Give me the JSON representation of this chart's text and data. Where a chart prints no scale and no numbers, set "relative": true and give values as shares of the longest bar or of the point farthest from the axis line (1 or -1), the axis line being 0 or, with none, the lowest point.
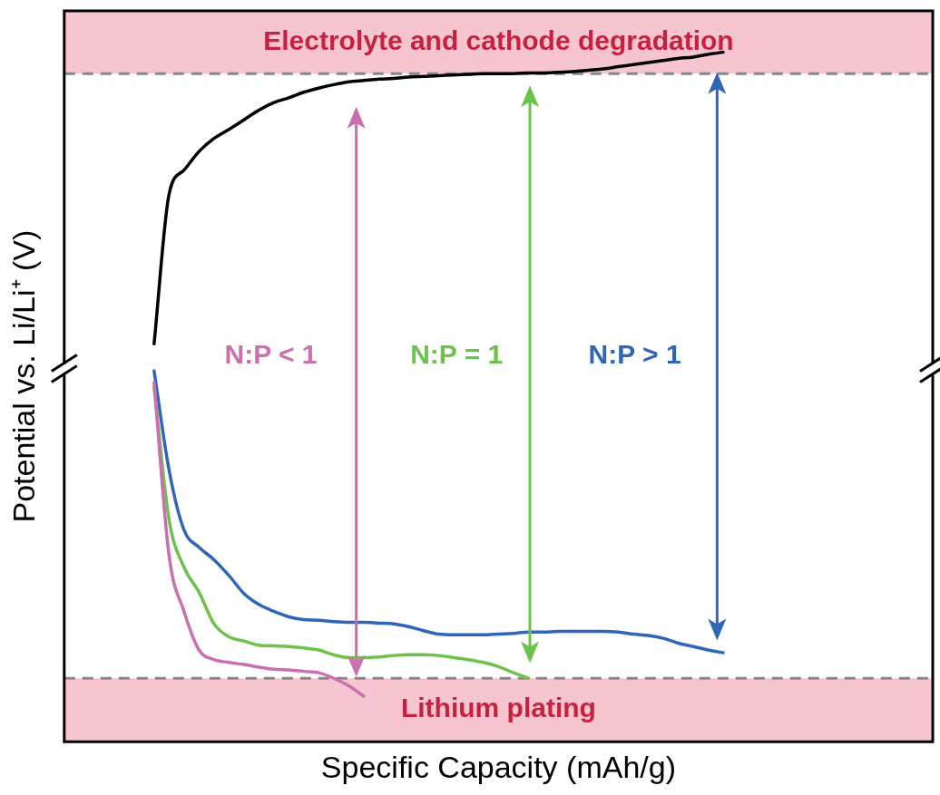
{
  "chart_data": {
    "type": "line",
    "relative": true,
    "xlabel": "Specific Capacity (mAh/g)",
    "ylabel": "Potential vs. Li/Li⁺ (V)",
    "categories": [
      null,
      null,
      null,
      null,
      null,
      null,
      null,
      null,
      null,
      null,
      null,
      null,
      null,
      null,
      null,
      null,
      null,
      null,
      null,
      null,
      null,
      null,
      null,
      null,
      null,
      null,
      null,
      null,
      null,
      null,
      null,
      null,
      null,
      null,
      null,
      null,
      null,
      null,
      null,
      null,
      null,
      null,
      null,
      null,
      null,
      null,
      null,
      null,
      null,
      null,
      null,
      null,
      null,
      null,
      null,
      null,
      null,
      null,
      null
    ],
    "series": [
      {
        "color": "#000000",
        "values": [
          null,
          null,
          null,
          null,
          null,
          null,
          0.577,
          0.794,
          0.829,
          0.856,
          0.875,
          0.888,
          0.902,
          0.916,
          0.927,
          0.934,
          0.942,
          0.948,
          0.953,
          0.957,
          0.959,
          0.961,
          0.962,
          0.964,
          0.965,
          0.966,
          0.967,
          0.968,
          0.969,
          0.969,
          0.969,
          0.97,
          0.97,
          0.971,
          0.972,
          0.974,
          0.976,
          0.979,
          0.982,
          0.985,
          0.988,
          0.991,
          0.993,
          0.997,
          1,
          null,
          null,
          null,
          null,
          null,
          null,
          null,
          null,
          null,
          null,
          null,
          null,
          null,
          null
        ]
      },
      {
        "color": "#cc6faf",
        "values": [
          null,
          null,
          null,
          null,
          null,
          null,
          0.521,
          0.27,
          0.189,
          0.133,
          0.119,
          0.115,
          0.112,
          0.108,
          0.105,
          0.104,
          0.102,
          0.1,
          0.092,
          0.081,
          0.066,
          null,
          null,
          null,
          null,
          null,
          null,
          null,
          null,
          null,
          null,
          null,
          null,
          null,
          null,
          null,
          null,
          null,
          null,
          null,
          null,
          null,
          null,
          null,
          null,
          null,
          null,
          null,
          null,
          null,
          null,
          null,
          null,
          null,
          null,
          null,
          null,
          null,
          null
        ]
      },
      {
        "color": "#6cc24a",
        "values": [
          null,
          null,
          null,
          null,
          null,
          null,
          0.514,
          0.322,
          0.253,
          0.217,
          0.171,
          0.152,
          0.146,
          0.14,
          0.139,
          0.138,
          0.136,
          0.133,
          0.126,
          0.122,
          0.122,
          0.123,
          0.125,
          0.126,
          0.126,
          0.125,
          0.122,
          0.119,
          0.115,
          0.109,
          0.1,
          0.092,
          null,
          null,
          null,
          null,
          null,
          null,
          null,
          null,
          null,
          null,
          null,
          null,
          null,
          null,
          null,
          null,
          null,
          null,
          null,
          null,
          null,
          null,
          null,
          null,
          null,
          null,
          null
        ]
      },
      {
        "color": "#2f66b5",
        "values": [
          null,
          null,
          null,
          null,
          null,
          null,
          0.538,
          0.394,
          0.307,
          0.282,
          0.264,
          0.241,
          0.215,
          0.199,
          0.189,
          0.181,
          0.177,
          0.176,
          0.174,
          0.173,
          0.173,
          0.172,
          0.171,
          0.167,
          0.161,
          0.156,
          0.155,
          0.155,
          0.155,
          0.156,
          0.157,
          0.159,
          0.159,
          0.16,
          0.16,
          0.16,
          0.16,
          0.159,
          0.156,
          0.154,
          0.15,
          0.143,
          0.138,
          0.133,
          0.129,
          null,
          null,
          null,
          null,
          null,
          null,
          null,
          null,
          null,
          null,
          null,
          null,
          null,
          null
        ]
      }
    ],
    "bands": [
      {
        "axis": "y",
        "from": 0.969,
        "to": 1.06,
        "label": "Electrolyte and cathode degradation",
        "color": "#f7c5cf"
      },
      {
        "axis": "y",
        "from": 0,
        "to": 0.092,
        "label": "Lithium plating",
        "color": "#f7c5cf"
      }
    ],
    "ref_lines": [
      {
        "axis": "y",
        "value": 0.969,
        "color": "#888888",
        "line_style": "dashed"
      },
      {
        "axis": "y",
        "value": 0.092,
        "color": "#888888",
        "line_style": "dashed"
      }
    ],
    "annotations": [
      "N:P < 1",
      "N:P = 1",
      "N:P > 1"
    ],
    "legend": false,
    "grid": false,
    "marker": "none",
    "line_style": "solid"
  }
}
